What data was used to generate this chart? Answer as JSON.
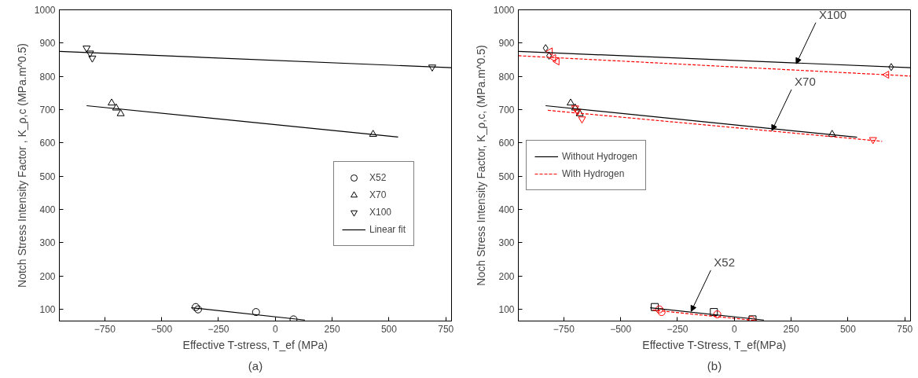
{
  "chart_data": [
    {
      "type": "scatter",
      "xlabel": "Effective T-stress, T_ef (MPa)",
      "ylabel": "Notch Stress Intensity Factor , K_ρ,c (MPa.m^0.5)",
      "xlim": [
        -950,
        775
      ],
      "ylim": [
        65,
        1000
      ],
      "xticks": [
        -750,
        -500,
        -250,
        0,
        250,
        500,
        750
      ],
      "yticks": [
        100,
        200,
        300,
        400,
        500,
        600,
        700,
        800,
        900,
        1000
      ],
      "grid": false,
      "legend": "right",
      "annotations": [
        "(a)"
      ],
      "series": [
        {
          "name": "X52",
          "marker": "circle",
          "color": "#000000",
          "x": [
            -350,
            -340,
            -85,
            80
          ],
          "values": [
            107,
            100,
            92,
            70
          ]
        },
        {
          "name": "X70",
          "marker": "triangle",
          "color": "#000000",
          "x": [
            -720,
            -700,
            -680,
            430
          ],
          "values": [
            720,
            705,
            688,
            626
          ]
        },
        {
          "name": "X100",
          "marker": "triangle_down",
          "color": "#000000",
          "x": [
            -830,
            -815,
            -805,
            690
          ],
          "values": [
            885,
            870,
            855,
            828
          ]
        },
        {
          "name": "Linear fit",
          "type": "line",
          "line_style": "solid",
          "color": "#000000",
          "x": [
            -950,
            775
          ],
          "values": [
            875,
            826
          ]
        },
        {
          "type": "line",
          "line_style": "solid",
          "color": "#000000",
          "x": [
            -830,
            540
          ],
          "values": [
            712,
            618
          ]
        },
        {
          "type": "line",
          "line_style": "solid",
          "color": "#000000",
          "x": [
            -370,
            130
          ],
          "values": [
            105,
            68
          ]
        }
      ]
    },
    {
      "type": "scatter",
      "xlabel": "Effective T-Stress, T_ef(MPa)",
      "ylabel": "Noch Stress Intensity Factor, K_ρ,c, (MPa.m^0.5)",
      "xlim": [
        -950,
        775
      ],
      "ylim": [
        65,
        1000
      ],
      "xticks": [
        -750,
        -500,
        -250,
        0,
        250,
        500,
        750
      ],
      "yticks": [
        100,
        200,
        300,
        400,
        500,
        600,
        700,
        800,
        900,
        1000
      ],
      "grid": false,
      "legend": "left",
      "annotations": [
        "(b)",
        {
          "text": "X100",
          "x": 272,
          "y": 838
        },
        {
          "text": "X70",
          "x": 165,
          "y": 637
        },
        {
          "text": "X52",
          "x": -190,
          "y": 94
        }
      ],
      "series": [
        {
          "marker": "diamond",
          "color": "#000000",
          "x": [
            -830,
            -815,
            690
          ],
          "values": [
            885,
            862,
            828
          ]
        },
        {
          "marker": "triangle",
          "color": "#000000",
          "x": [
            -720,
            -700,
            -680,
            430
          ],
          "values": [
            720,
            705,
            688,
            626
          ]
        },
        {
          "marker": "square",
          "color": "#000000",
          "x": [
            -350,
            -90,
            80
          ],
          "values": [
            107,
            92,
            70
          ]
        },
        {
          "marker": "triangle_left",
          "color": "#ff0000",
          "x": [
            -810,
            -795,
            -780,
            670
          ],
          "values": [
            875,
            855,
            845,
            805
          ]
        },
        {
          "marker": "triangle_down",
          "color": "#ff0000",
          "x": [
            -700,
            -690,
            -670,
            610
          ],
          "values": [
            705,
            695,
            672,
            610
          ]
        },
        {
          "marker": "circle",
          "color": "#ff0000",
          "x": [
            -330,
            -320,
            -75,
            75
          ],
          "values": [
            100,
            92,
            85,
            68
          ]
        },
        {
          "name": "Without Hydrogen",
          "type": "line",
          "line_style": "solid",
          "color": "#000000",
          "x": [
            -950,
            775
          ],
          "values": [
            875,
            826
          ]
        },
        {
          "type": "line",
          "line_style": "solid",
          "color": "#000000",
          "x": [
            -830,
            540
          ],
          "values": [
            712,
            617
          ]
        },
        {
          "type": "line",
          "line_style": "solid",
          "color": "#000000",
          "x": [
            -370,
            130
          ],
          "values": [
            105,
            68
          ]
        },
        {
          "name": "With Hydrogen",
          "type": "line",
          "line_style": "dotted",
          "color": "#ff0000",
          "x": [
            -950,
            775
          ],
          "values": [
            862,
            801
          ]
        },
        {
          "type": "line",
          "line_style": "dotted",
          "color": "#ff0000",
          "x": [
            -820,
            650
          ],
          "values": [
            698,
            605
          ]
        },
        {
          "type": "line",
          "line_style": "dotted",
          "color": "#ff0000",
          "x": [
            -360,
            100
          ],
          "values": [
            98,
            66
          ]
        }
      ]
    }
  ]
}
